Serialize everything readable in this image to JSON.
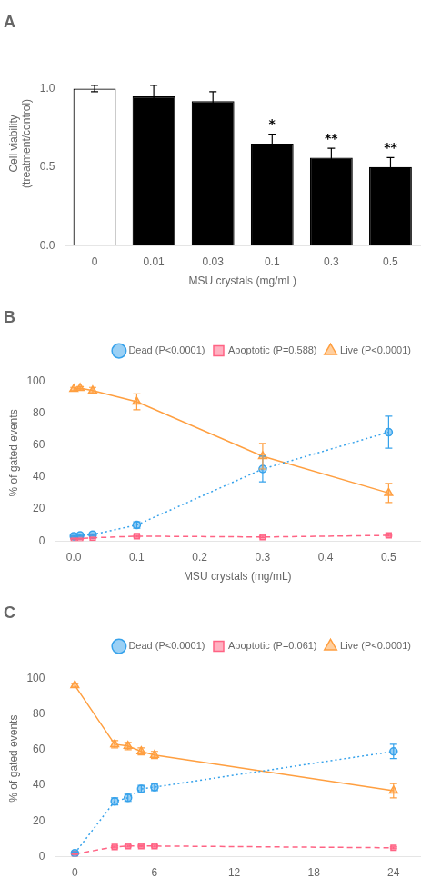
{
  "chart_data": [
    {
      "type": "bar",
      "title": "A",
      "categories": [
        "0",
        "0.01",
        "0.03",
        "0.1",
        "0.3",
        "0.5"
      ],
      "values": [
        1.0,
        0.95,
        0.92,
        0.65,
        0.56,
        0.5
      ],
      "errors": [
        0.02,
        0.07,
        0.06,
        0.06,
        0.06,
        0.06
      ],
      "colors": [
        "white",
        "black",
        "black",
        "black",
        "black",
        "black"
      ],
      "annotations": [
        {
          "x": "0.1",
          "text": "*"
        },
        {
          "x": "0.3",
          "text": "**"
        },
        {
          "x": "0.5",
          "text": "**"
        }
      ],
      "xlabel": "MSU crystals (mg/mL)",
      "ylabel": "Cell viability\n(treatment/control)",
      "ylim": [
        0.0,
        1.3
      ],
      "yticks": [
        {
          "value": 0.0,
          "label": "0.0"
        },
        0.5,
        {
          "value": 1.0,
          "label": "1.0"
        }
      ],
      "grid": false
    },
    {
      "type": "line",
      "title": "B",
      "series": [
        {
          "name": "Dead (P<0.0001)",
          "x": [
            0.0,
            0.01,
            0.03,
            0.1,
            0.3,
            0.5
          ],
          "values": [
            3.0,
            3.5,
            4.0,
            10.0,
            45.0,
            68.0
          ],
          "errors": [
            0.5,
            0.5,
            0.5,
            2.0,
            8.0,
            10.0
          ],
          "marker": "circle",
          "line_style": "dotted"
        },
        {
          "name": "Apoptotic (P=0.588)",
          "x": [
            0.0,
            0.01,
            0.03,
            0.1,
            0.3,
            0.5
          ],
          "values": [
            1.5,
            1.5,
            2.0,
            3.0,
            2.5,
            3.5
          ],
          "errors": [
            0.3,
            0.3,
            0.3,
            0.5,
            0.5,
            0.5
          ],
          "marker": "square",
          "line_style": "dashed"
        },
        {
          "name": "Live (P<0.0001)",
          "x": [
            0.0,
            0.01,
            0.03,
            0.1,
            0.3,
            0.5
          ],
          "values": [
            95.0,
            95.5,
            94.0,
            87.0,
            53.0,
            30.0
          ],
          "errors": [
            1.0,
            1.0,
            2.0,
            5.0,
            8.0,
            6.0
          ],
          "marker": "triangle",
          "line_style": "solid"
        }
      ],
      "xlabel": "MSU crystals (mg/mL)",
      "ylabel": "% of gated events",
      "xlim": [
        -0.03,
        0.55
      ],
      "xticks": [
        {
          "value": 0.0,
          "label": "0.0"
        },
        0.1,
        0.2,
        0.3,
        0.4,
        0.5
      ],
      "ylim": [
        0,
        110
      ],
      "yticks": [
        0,
        20,
        40,
        60,
        80,
        100
      ],
      "legend": "upper right",
      "grid": false
    },
    {
      "type": "line",
      "title": "C",
      "series": [
        {
          "name": "Dead (P<0.0001)",
          "x": [
            0,
            3,
            4,
            5,
            6,
            24
          ],
          "values": [
            2.0,
            31.0,
            33.0,
            38.0,
            39.0,
            59.0
          ],
          "errors": [
            0.5,
            2.0,
            2.0,
            2.0,
            2.0,
            4.0
          ],
          "marker": "circle",
          "line_style": "dotted"
        },
        {
          "name": "Apoptotic (P=0.061)",
          "x": [
            0,
            3,
            4,
            5,
            6,
            24
          ],
          "values": [
            1.5,
            5.5,
            6.0,
            6.0,
            6.0,
            5.0
          ],
          "errors": [
            0.3,
            0.5,
            0.5,
            0.5,
            0.5,
            0.5
          ],
          "marker": "square",
          "line_style": "dashed"
        },
        {
          "name": "Live (P<0.0001)",
          "x": [
            0,
            3,
            4,
            5,
            6,
            24
          ],
          "values": [
            96.0,
            63.0,
            62.0,
            59.0,
            57.0,
            37.0
          ],
          "errors": [
            1.0,
            2.0,
            2.0,
            2.0,
            2.0,
            4.0
          ],
          "marker": "triangle",
          "line_style": "solid"
        }
      ],
      "ylabel": "% of gated events",
      "xlim": [
        -1.5,
        26
      ],
      "xticks": [
        0,
        6,
        12,
        18,
        24
      ],
      "ylim": [
        0,
        110
      ],
      "yticks": [
        0,
        20,
        40,
        60,
        80,
        100
      ],
      "legend": "upper right",
      "grid": false
    }
  ]
}
